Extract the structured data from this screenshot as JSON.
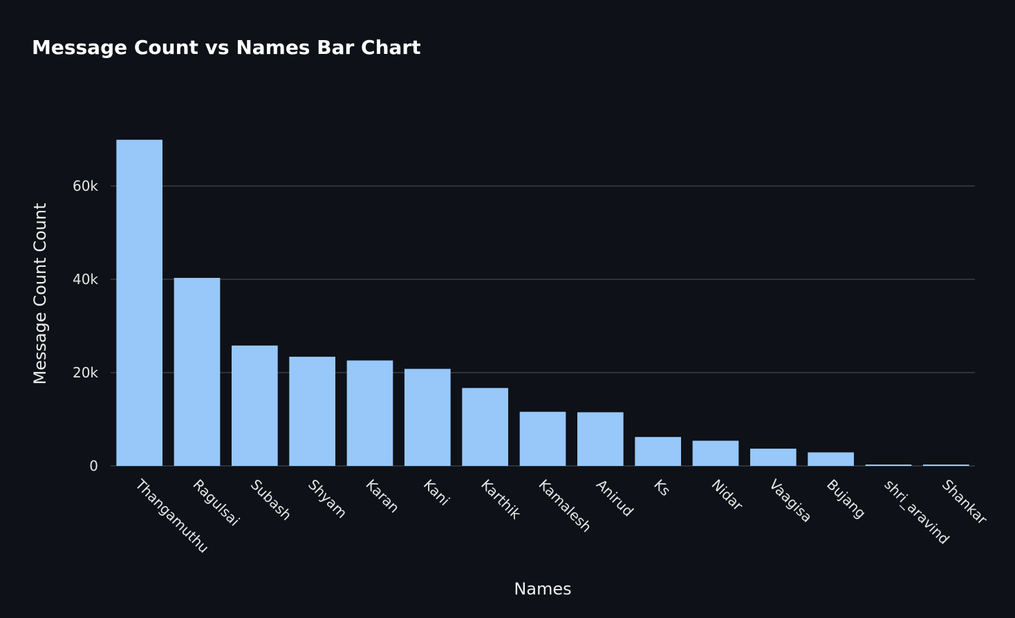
{
  "chart_data": {
    "type": "bar",
    "title": "Message Count vs Names Bar Chart",
    "xlabel": "Names",
    "ylabel": "Message Count Count",
    "categories": [
      "Thangamuthu",
      "Ragulsai",
      "Subash",
      "Shyam",
      "Karan",
      "Kani",
      "Karthik",
      "Kamalesh",
      "Anirud",
      "Ks",
      "Nidar",
      "Vaagisa",
      "Bujang",
      "shri_aravind",
      "Shankar"
    ],
    "values": [
      69900,
      40300,
      25800,
      23400,
      22600,
      20800,
      16700,
      11600,
      11500,
      6200,
      5400,
      3700,
      2900,
      300,
      300
    ],
    "ylim": [
      0,
      73000
    ],
    "yticks": [
      {
        "value": 0,
        "label": "0"
      },
      {
        "value": 20000,
        "label": "20k"
      },
      {
        "value": 40000,
        "label": "40k"
      },
      {
        "value": 60000,
        "label": "60k"
      }
    ],
    "grid": true,
    "colors": {
      "bar": "#97c8f9",
      "background": "#0e1117",
      "grid": "#3a3d45"
    }
  }
}
